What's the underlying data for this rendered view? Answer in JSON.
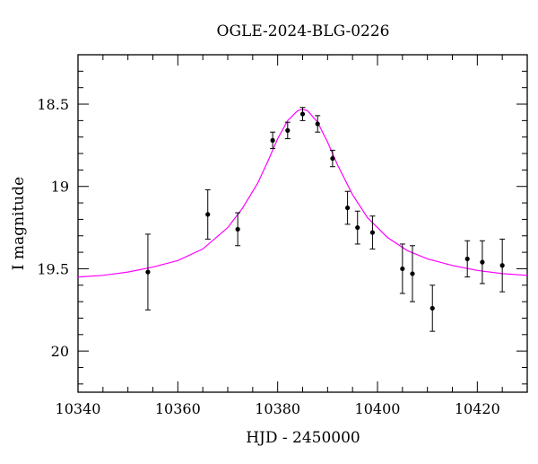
{
  "chart_data": {
    "type": "scatter",
    "title": "OGLE-2024-BLG-0226",
    "xlabel": "HJD - 2450000",
    "ylabel": "I magnitude",
    "xlim": [
      10340,
      10430
    ],
    "ylim": [
      20.25,
      18.2
    ],
    "y_inverted": true,
    "grid": false,
    "x_ticks": [
      "10340",
      "10360",
      "10380",
      "10400",
      "10420"
    ],
    "x_tick_values": [
      10340,
      10360,
      10380,
      10400,
      10420
    ],
    "y_ticks": [
      "18.5",
      "19",
      "19.5",
      "20"
    ],
    "y_tick_values": [
      18.5,
      19,
      19.5,
      20
    ],
    "series": [
      {
        "kind": "errorbar",
        "color": "#000000",
        "points": [
          {
            "x": 10354,
            "y": 19.52,
            "err": 0.23
          },
          {
            "x": 10366,
            "y": 19.17,
            "err": 0.15
          },
          {
            "x": 10372,
            "y": 19.26,
            "err": 0.1
          },
          {
            "x": 10379,
            "y": 18.72,
            "err": 0.05
          },
          {
            "x": 10382,
            "y": 18.66,
            "err": 0.05
          },
          {
            "x": 10385,
            "y": 18.56,
            "err": 0.04
          },
          {
            "x": 10388,
            "y": 18.62,
            "err": 0.05
          },
          {
            "x": 10391,
            "y": 18.83,
            "err": 0.05
          },
          {
            "x": 10394,
            "y": 19.13,
            "err": 0.1
          },
          {
            "x": 10396,
            "y": 19.25,
            "err": 0.1
          },
          {
            "x": 10399,
            "y": 19.28,
            "err": 0.1
          },
          {
            "x": 10405,
            "y": 19.5,
            "err": 0.15
          },
          {
            "x": 10407,
            "y": 19.53,
            "err": 0.17
          },
          {
            "x": 10411,
            "y": 19.74,
            "err": 0.14
          },
          {
            "x": 10418,
            "y": 19.44,
            "err": 0.11
          },
          {
            "x": 10421,
            "y": 19.46,
            "err": 0.13
          },
          {
            "x": 10425,
            "y": 19.48,
            "err": 0.16
          }
        ]
      },
      {
        "kind": "model-curve",
        "color": "#ff00ff",
        "points": [
          {
            "x": 10340,
            "y": 19.55
          },
          {
            "x": 10345,
            "y": 19.54
          },
          {
            "x": 10350,
            "y": 19.52
          },
          {
            "x": 10355,
            "y": 19.49
          },
          {
            "x": 10360,
            "y": 19.45
          },
          {
            "x": 10365,
            "y": 19.38
          },
          {
            "x": 10370,
            "y": 19.25
          },
          {
            "x": 10373,
            "y": 19.13
          },
          {
            "x": 10376,
            "y": 18.98
          },
          {
            "x": 10378,
            "y": 18.85
          },
          {
            "x": 10380,
            "y": 18.71
          },
          {
            "x": 10382,
            "y": 18.6
          },
          {
            "x": 10384,
            "y": 18.54
          },
          {
            "x": 10385,
            "y": 18.53
          },
          {
            "x": 10386,
            "y": 18.54
          },
          {
            "x": 10388,
            "y": 18.61
          },
          {
            "x": 10390,
            "y": 18.73
          },
          {
            "x": 10392,
            "y": 18.87
          },
          {
            "x": 10395,
            "y": 19.05
          },
          {
            "x": 10398,
            "y": 19.19
          },
          {
            "x": 10402,
            "y": 19.31
          },
          {
            "x": 10406,
            "y": 19.39
          },
          {
            "x": 10410,
            "y": 19.44
          },
          {
            "x": 10415,
            "y": 19.48
          },
          {
            "x": 10420,
            "y": 19.51
          },
          {
            "x": 10425,
            "y": 19.53
          },
          {
            "x": 10430,
            "y": 19.54
          }
        ]
      }
    ]
  }
}
